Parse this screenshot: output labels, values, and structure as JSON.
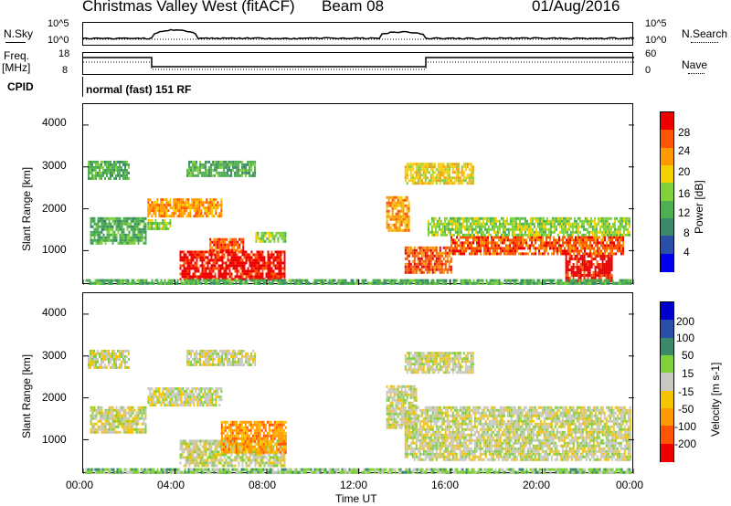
{
  "header": {
    "site": "Christmas Valley West (fitACF)",
    "beam": "Beam 08",
    "date": "01/Aug/2016"
  },
  "top_panels": {
    "nsky_label": "N.Sky",
    "nsky_ticks": [
      "10^5",
      "10^0"
    ],
    "nsearch_label": "N.Search",
    "nsearch_ticks": [
      "10^5",
      "10^0"
    ],
    "freq_label": "Freq.",
    "freq_unit": "[MHz]",
    "freq_ticks": [
      "18",
      "8"
    ],
    "nave_label": "Nave",
    "nave_ticks": [
      "60",
      "0"
    ],
    "cpid_label": "CPID",
    "cpid_text": "normal (fast) 151 RF"
  },
  "colors": {
    "power": [
      "#0000ee",
      "#2a4fa8",
      "#3a8a6a",
      "#4caf50",
      "#7fd03a",
      "#f5d000",
      "#ff9900",
      "#ff5500",
      "#ee0000"
    ],
    "velocity": [
      "#ee0000",
      "#ff5500",
      "#ff9900",
      "#f5c400",
      "#c8c8c0",
      "#7fd03a",
      "#3a8a6a",
      "#2a4fa8",
      "#0000cc"
    ]
  },
  "chart_data": [
    {
      "type": "heatmap",
      "name": "power",
      "ylabel": "Slant Range [km]",
      "yticks": [
        "4000",
        "3000",
        "2000",
        "1000"
      ],
      "ylim": [
        180,
        4500
      ],
      "xlim": [
        0,
        24
      ],
      "colorbar_label": "Power [dB]",
      "colorbar_ticks": [
        "28",
        "24",
        "20",
        "16",
        "12",
        "8",
        "4"
      ],
      "regions": [
        {
          "t0": 4.2,
          "t1": 8.8,
          "r0": 300,
          "r1": 1000,
          "level": 8
        },
        {
          "t0": 5.5,
          "t1": 7.0,
          "r0": 1000,
          "r1": 1300,
          "level": 7
        },
        {
          "t0": 7.5,
          "t1": 8.8,
          "r0": 1200,
          "r1": 1450,
          "level": 4
        },
        {
          "t0": 2.8,
          "t1": 6.0,
          "r0": 1850,
          "r1": 2250,
          "level": 6
        },
        {
          "t0": 0.3,
          "t1": 2.7,
          "r0": 1200,
          "r1": 1800,
          "level": 3
        },
        {
          "t0": 2.8,
          "t1": 3.8,
          "r0": 1500,
          "r1": 1750,
          "level": 4
        },
        {
          "t0": 0.2,
          "t1": 2.0,
          "r0": 2700,
          "r1": 3150,
          "level": 3
        },
        {
          "t0": 4.5,
          "t1": 7.5,
          "r0": 2800,
          "r1": 3150,
          "level": 3
        },
        {
          "t0": 13.2,
          "t1": 14.2,
          "r0": 1500,
          "r1": 2300,
          "level": 6
        },
        {
          "t0": 14.0,
          "t1": 16.0,
          "r0": 500,
          "r1": 1100,
          "level": 7
        },
        {
          "t0": 16.0,
          "t1": 23.5,
          "r0": 900,
          "r1": 1350,
          "level": 7
        },
        {
          "t0": 21.0,
          "t1": 23.0,
          "r0": 300,
          "r1": 900,
          "level": 8
        },
        {
          "t0": 15.0,
          "t1": 23.8,
          "r0": 1350,
          "r1": 1800,
          "level": 4
        },
        {
          "t0": 14.0,
          "t1": 17.0,
          "r0": 2600,
          "r1": 3100,
          "level": 5
        },
        {
          "t0": 0.1,
          "t1": 23.9,
          "r0": 180,
          "r1": 320,
          "level": 3
        }
      ]
    },
    {
      "type": "heatmap",
      "name": "velocity",
      "ylabel": "Slant Range [km]",
      "yticks": [
        "4000",
        "3000",
        "2000",
        "1000"
      ],
      "ylim": [
        180,
        4500
      ],
      "xlim": [
        0,
        24
      ],
      "xlabel": "Time UT",
      "xticks": [
        "00:00",
        "04:00",
        "08:00",
        "12:00",
        "16:00",
        "20:00",
        "00:00"
      ],
      "colorbar_label": "Velocity [m s-1]",
      "colorbar_ticks": [
        "200",
        "100",
        "50",
        "15",
        "-15",
        "-50",
        "-100",
        "-200"
      ],
      "regions": [
        {
          "t0": 4.2,
          "t1": 8.8,
          "r0": 400,
          "r1": 1000,
          "level": 4
        },
        {
          "t0": 6.0,
          "t1": 8.8,
          "r0": 700,
          "r1": 1450,
          "level": 2
        },
        {
          "t0": 2.8,
          "t1": 6.0,
          "r0": 1850,
          "r1": 2250,
          "level": 4
        },
        {
          "t0": 0.3,
          "t1": 2.7,
          "r0": 1200,
          "r1": 1800,
          "level": 4
        },
        {
          "t0": 0.2,
          "t1": 2.0,
          "r0": 2700,
          "r1": 3150,
          "level": 4
        },
        {
          "t0": 4.5,
          "t1": 7.5,
          "r0": 2800,
          "r1": 3150,
          "level": 4
        },
        {
          "t0": 13.2,
          "t1": 14.5,
          "r0": 1300,
          "r1": 2300,
          "level": 4
        },
        {
          "t0": 14.0,
          "t1": 23.8,
          "r0": 500,
          "r1": 1800,
          "level": 4
        },
        {
          "t0": 14.0,
          "t1": 17.0,
          "r0": 2600,
          "r1": 3100,
          "level": 4
        },
        {
          "t0": 0.1,
          "t1": 23.9,
          "r0": 180,
          "r1": 320,
          "level": 5
        }
      ]
    }
  ]
}
